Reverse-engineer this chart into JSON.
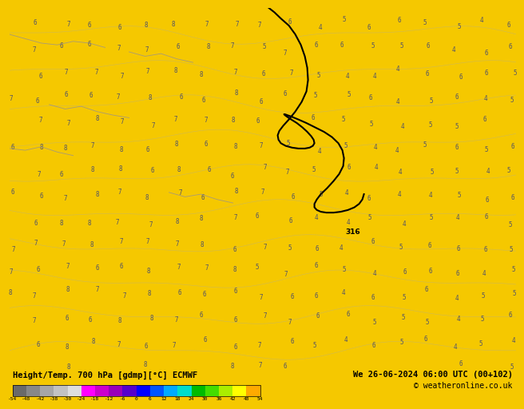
{
  "title_left": "Height/Temp. 700 hPa [gdmp][°C] ECMWF",
  "title_right": "We 26-06-2024 06:00 UTC (00+102)",
  "copyright": "© weatheronline.co.uk",
  "colorbar_values": [
    -54,
    -48,
    -42,
    -38,
    -30,
    -24,
    -18,
    -12,
    -6,
    0,
    6,
    12,
    18,
    24,
    30,
    36,
    42,
    48,
    54
  ],
  "colorbar_colors": [
    "#6e6e6e",
    "#8c8c8c",
    "#aaaaaa",
    "#c8c8c8",
    "#e6e6e6",
    "#ff00ff",
    "#cc00cc",
    "#9900aa",
    "#4400cc",
    "#0000ff",
    "#0055ff",
    "#00aaff",
    "#00dddd",
    "#00cc00",
    "#33dd00",
    "#aaee00",
    "#ffff00",
    "#ffcc00",
    "#ff9900",
    "#ff6600",
    "#ff3300",
    "#cc0000",
    "#990000"
  ],
  "bg_color": "#f0c800",
  "main_bg": "#f5c800",
  "black_contour_color": "#000000",
  "label_color": "#8888aa",
  "contour_numbers_color": "#888888",
  "footer_bg": "#ffffff",
  "fig_width": 6.34,
  "fig_height": 4.9
}
